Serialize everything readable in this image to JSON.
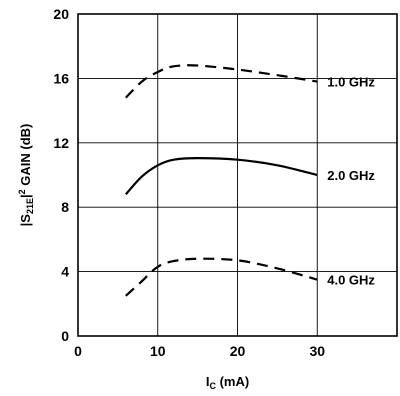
{
  "chart_data": {
    "type": "line",
    "xlabel": {
      "main": "I",
      "sub": "C",
      "rest": " (mA)"
    },
    "ylabel": {
      "pre": "|S",
      "sub": "21E",
      "mid": "|",
      "sup": "2",
      "post": " GAIN (dB)"
    },
    "xlim": [
      0,
      40
    ],
    "ylim": [
      0,
      20
    ],
    "xticks": [
      0,
      10,
      20,
      30
    ],
    "yticks": [
      0,
      4,
      8,
      12,
      16,
      20
    ],
    "grid": true,
    "series": [
      {
        "name": "1.0 GHz",
        "style": "dashed",
        "points": [
          [
            6,
            14.8
          ],
          [
            8,
            15.8
          ],
          [
            10,
            16.4
          ],
          [
            12,
            16.75
          ],
          [
            15,
            16.8
          ],
          [
            20,
            16.55
          ],
          [
            25,
            16.2
          ],
          [
            30,
            15.8
          ]
        ]
      },
      {
        "name": "2.0 GHz",
        "style": "solid",
        "points": [
          [
            6,
            8.8
          ],
          [
            8,
            9.9
          ],
          [
            10,
            10.6
          ],
          [
            12,
            10.95
          ],
          [
            15,
            11.05
          ],
          [
            20,
            10.95
          ],
          [
            25,
            10.6
          ],
          [
            30,
            10.0
          ]
        ]
      },
      {
        "name": "4.0 GHz",
        "style": "dashed",
        "points": [
          [
            6,
            2.5
          ],
          [
            8,
            3.4
          ],
          [
            10,
            4.3
          ],
          [
            12,
            4.65
          ],
          [
            15,
            4.8
          ],
          [
            20,
            4.7
          ],
          [
            25,
            4.2
          ],
          [
            30,
            3.5
          ]
        ]
      }
    ]
  }
}
